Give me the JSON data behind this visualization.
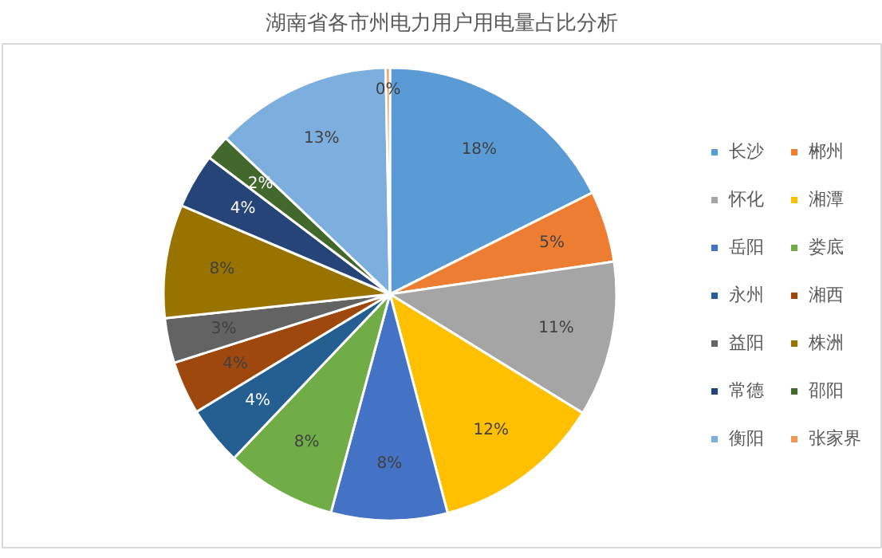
{
  "chart_data": {
    "type": "pie",
    "title": "湖南省各市州电力用户用电量占比分析",
    "categories": [
      "长沙",
      "郴州",
      "怀化",
      "湘潭",
      "岳阳",
      "娄底",
      "永州",
      "湘西",
      "益阳",
      "株洲",
      "常德",
      "邵阳",
      "衡阳",
      "张家界"
    ],
    "values": [
      17.6,
      5.1,
      11.1,
      12.1,
      8.3,
      7.9,
      4.2,
      3.8,
      3.2,
      8.1,
      3.9,
      1.8,
      12.6,
      0.3
    ],
    "value_labels": [
      "18%",
      "5%",
      "11%",
      "12%",
      "8%",
      "8%",
      "4%",
      "4%",
      "3%",
      "8%",
      "4%",
      "2%",
      "13%",
      "0%"
    ],
    "colors": [
      "#5b9bd5",
      "#ed7d31",
      "#a5a5a5",
      "#ffc000",
      "#4472c4",
      "#70ad47",
      "#255e91",
      "#9e480e",
      "#636363",
      "#997300",
      "#264478",
      "#43682b",
      "#7cafdd",
      "#f1975a"
    ],
    "legend": "right"
  }
}
